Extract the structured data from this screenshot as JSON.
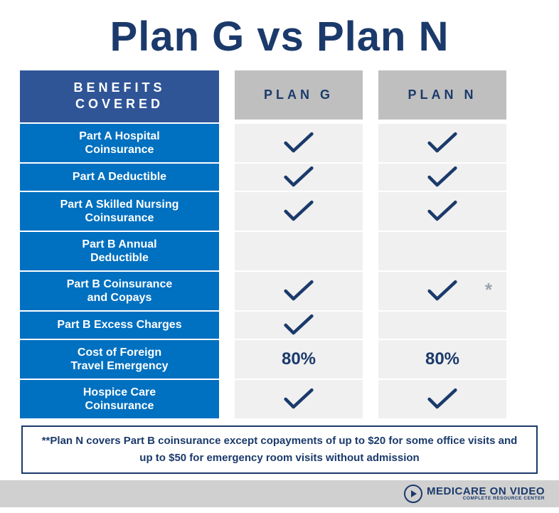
{
  "title": "Plan G vs Plan N",
  "colors": {
    "title": "#1b3a6b",
    "benefits_header_bg": "#2f5597",
    "benefits_row_bg": "#0070c0",
    "plan_header_bg": "#bfbfbf",
    "plan_row_bg": "#f0f0f0",
    "check_color": "#1b3a6b",
    "footnote_border": "#1b3a6b",
    "footer_bg": "#d0d0d0"
  },
  "table": {
    "benefits_header_line1": "BENEFITS",
    "benefits_header_line2": "COVERED",
    "plan_headers": [
      "PLAN G",
      "PLAN N"
    ],
    "rows": [
      {
        "label_line1": "Part A Hospital",
        "label_line2": "Coinsurance",
        "single": false,
        "plan_g": {
          "type": "check"
        },
        "plan_n": {
          "type": "check"
        }
      },
      {
        "label_line1": "Part A Deductible",
        "label_line2": "",
        "single": true,
        "plan_g": {
          "type": "check"
        },
        "plan_n": {
          "type": "check"
        }
      },
      {
        "label_line1": "Part A Skilled Nursing",
        "label_line2": "Coinsurance",
        "single": false,
        "plan_g": {
          "type": "check"
        },
        "plan_n": {
          "type": "check"
        }
      },
      {
        "label_line1": "Part B Annual",
        "label_line2": "Deductible",
        "single": false,
        "plan_g": {
          "type": "empty"
        },
        "plan_n": {
          "type": "empty"
        }
      },
      {
        "label_line1": "Part B Coinsurance",
        "label_line2": "and Copays",
        "single": false,
        "plan_g": {
          "type": "check"
        },
        "plan_n": {
          "type": "check",
          "asterisk": true
        }
      },
      {
        "label_line1": "Part B Excess Charges",
        "label_line2": "",
        "single": true,
        "plan_g": {
          "type": "check"
        },
        "plan_n": {
          "type": "empty"
        }
      },
      {
        "label_line1": "Cost of Foreign",
        "label_line2": "Travel Emergency",
        "single": false,
        "plan_g": {
          "type": "text",
          "value": "80%"
        },
        "plan_n": {
          "type": "text",
          "value": "80%"
        }
      },
      {
        "label_line1": "Hospice Care",
        "label_line2": "Coinsurance",
        "single": false,
        "plan_g": {
          "type": "check"
        },
        "plan_n": {
          "type": "check"
        }
      }
    ]
  },
  "footnote": "**Plan N covers Part B coinsurance except copayments of up to $20 for some office visits and up to $50 for emergency room visits without admission",
  "logo": {
    "main": "MEDICARE ON VIDEO",
    "sub": "COMPLETE RESOURCE CENTER"
  }
}
